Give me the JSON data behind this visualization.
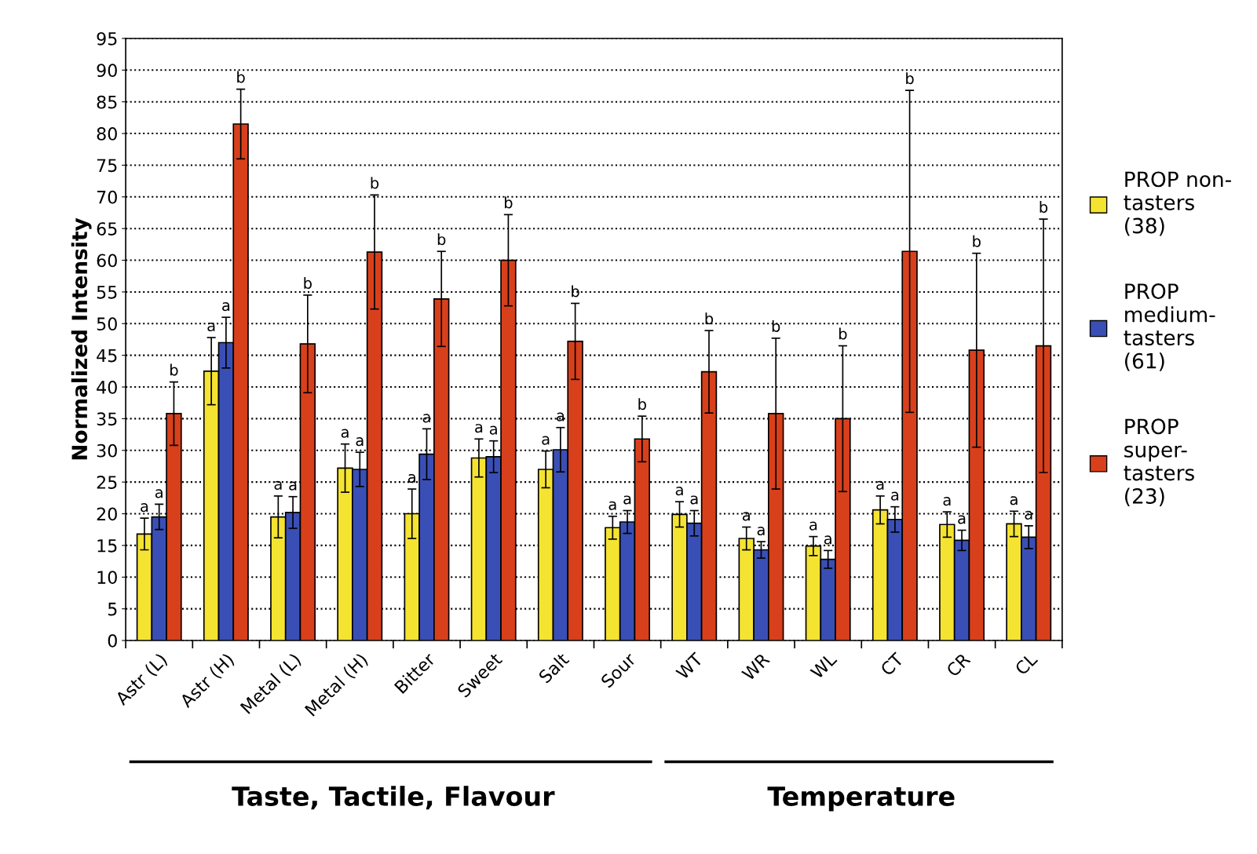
{
  "chart_data": {
    "type": "bar",
    "ylabel": "Normalized Intensity",
    "categories": [
      "Astr (L)",
      "Astr (H)",
      "Metal (L)",
      "Metal (H)",
      "Bitter",
      "Sweet",
      "Salt",
      "Sour",
      "WT",
      "WR",
      "WL",
      "CT",
      "CR",
      "CL"
    ],
    "series": [
      {
        "name": "PROP non-\ntasters\n(38)",
        "color": "#f5e332",
        "values": [
          16.8,
          42.5,
          19.5,
          27.2,
          20.0,
          28.8,
          27.0,
          17.8,
          19.9,
          16.1,
          14.9,
          20.6,
          18.3,
          18.4
        ],
        "errors": [
          2.5,
          5.3,
          3.3,
          3.8,
          3.9,
          3.0,
          2.9,
          1.8,
          2.0,
          1.8,
          1.5,
          2.2,
          2.0,
          2.0
        ]
      },
      {
        "name": "PROP\nmedium-\ntasters\n(61)",
        "color": "#3a4fb5",
        "values": [
          19.5,
          47.0,
          20.2,
          27.0,
          29.4,
          29.0,
          30.1,
          18.7,
          18.5,
          14.3,
          12.8,
          19.1,
          15.8,
          16.3
        ],
        "errors": [
          2.0,
          4.0,
          2.5,
          2.7,
          4.0,
          2.5,
          3.5,
          1.8,
          2.0,
          1.3,
          1.4,
          2.0,
          1.6,
          1.8
        ]
      },
      {
        "name": "PROP\nsuper-\ntasters\n(23)",
        "color": "#d8401c",
        "values": [
          35.8,
          81.5,
          46.8,
          61.3,
          53.9,
          60.0,
          47.2,
          31.8,
          42.4,
          35.8,
          35.0,
          61.4,
          45.8,
          46.5
        ],
        "errors": [
          5.0,
          5.5,
          7.7,
          9.0,
          7.5,
          7.2,
          6.0,
          3.6,
          6.5,
          11.9,
          11.5,
          25.4,
          15.3,
          20.0
        ]
      }
    ],
    "ylim": [
      0,
      95
    ],
    "yticks": [
      0,
      5,
      10,
      15,
      20,
      25,
      30,
      35,
      40,
      45,
      50,
      55,
      60,
      65,
      70,
      75,
      80,
      85,
      90,
      95
    ],
    "grid": "y",
    "legend": "right",
    "annotations": [
      "a",
      "a",
      "b",
      "a",
      "a",
      "b",
      "a",
      "a",
      "b",
      "a",
      "a",
      "b",
      "a",
      "a",
      "b",
      "a",
      "a",
      "b",
      "a",
      "a",
      "b",
      "a",
      "a",
      "b",
      "a",
      "a",
      "b",
      "a",
      "a",
      "b",
      "a",
      "a",
      "b",
      "a",
      "a",
      "b",
      "a",
      "a",
      "b",
      "a",
      "a",
      "b",
      "Taste, Tactile, Flavour",
      "Temperature"
    ]
  }
}
